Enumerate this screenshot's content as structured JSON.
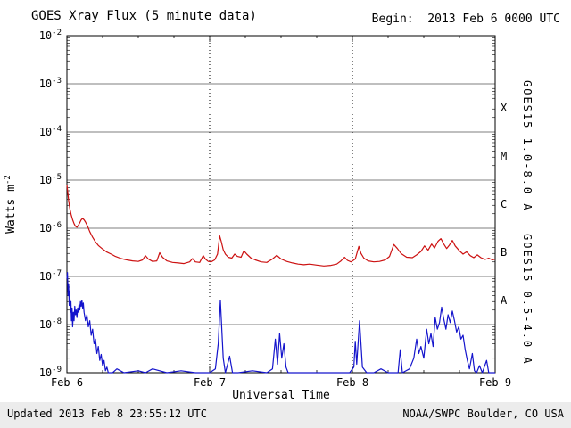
{
  "header": {
    "title": "GOES Xray Flux (5 minute data)",
    "begin_label": "Begin:  2013 Feb 6 0000 UTC"
  },
  "footer": {
    "updated": "Updated 2013 Feb 8 23:55:12 UTC",
    "source": "NOAA/SWPC Boulder, CO USA"
  },
  "axes": {
    "x_title": "Universal Time",
    "y_title_main": "Watts m",
    "y_title_sup": "-2"
  },
  "colors": {
    "long_series": "#cc1111",
    "short_series": "#1414cc",
    "grid": "#000000",
    "footer_bg": "#ececec"
  },
  "chart_data": {
    "type": "line",
    "title": "GOES Xray Flux (5 minute data)",
    "xlabel": "Universal Time",
    "ylabel": "Watts m^-2",
    "x_unit": "day of 2013 Feb (UTC)",
    "x_range": [
      6,
      9
    ],
    "ylim": [
      1e-09,
      0.01
    ],
    "y_tick_exponents": [
      -2,
      -3,
      -4,
      -5,
      -6,
      -7,
      -8,
      -9
    ],
    "x_ticks": [
      {
        "day": 6,
        "label": "Feb 6"
      },
      {
        "day": 7,
        "label": "Feb 7"
      },
      {
        "day": 8,
        "label": "Feb 8"
      },
      {
        "day": 9,
        "label": "Feb 9"
      }
    ],
    "grid": {
      "horizontal_exponents": [
        -3,
        -4,
        -5,
        -6,
        -7,
        -8
      ],
      "vertical_days": [
        7,
        8
      ]
    },
    "flare_classes": [
      {
        "label": "X",
        "log_center": -3.5
      },
      {
        "label": "M",
        "log_center": -4.5
      },
      {
        "label": "C",
        "log_center": -5.5
      },
      {
        "label": "B",
        "log_center": -6.5
      },
      {
        "label": "A",
        "log_center": -7.5
      }
    ],
    "series": [
      {
        "name": "GOES15 1.0-8.0 A",
        "color": "#cc1111",
        "points": [
          [
            6.0,
            8e-06
          ],
          [
            6.006,
            5.5e-06
          ],
          [
            6.012,
            3.8e-06
          ],
          [
            6.02,
            2.6e-06
          ],
          [
            6.03,
            1.9e-06
          ],
          [
            6.04,
            1.5e-06
          ],
          [
            6.05,
            1.25e-06
          ],
          [
            6.06,
            1.1e-06
          ],
          [
            6.07,
            1.05e-06
          ],
          [
            6.08,
            1.15e-06
          ],
          [
            6.09,
            1.3e-06
          ],
          [
            6.1,
            1.5e-06
          ],
          [
            6.11,
            1.6e-06
          ],
          [
            6.12,
            1.5e-06
          ],
          [
            6.13,
            1.35e-06
          ],
          [
            6.145,
            1.1e-06
          ],
          [
            6.16,
            8.5e-07
          ],
          [
            6.18,
            6.5e-07
          ],
          [
            6.2,
            5.2e-07
          ],
          [
            6.22,
            4.4e-07
          ],
          [
            6.25,
            3.7e-07
          ],
          [
            6.28,
            3.2e-07
          ],
          [
            6.31,
            2.9e-07
          ],
          [
            6.34,
            2.6e-07
          ],
          [
            6.38,
            2.35e-07
          ],
          [
            6.42,
            2.2e-07
          ],
          [
            6.46,
            2.1e-07
          ],
          [
            6.5,
            2.05e-07
          ],
          [
            6.53,
            2.2e-07
          ],
          [
            6.55,
            2.7e-07
          ],
          [
            6.57,
            2.3e-07
          ],
          [
            6.6,
            2.05e-07
          ],
          [
            6.63,
            2.1e-07
          ],
          [
            6.65,
            3.1e-07
          ],
          [
            6.67,
            2.5e-07
          ],
          [
            6.7,
            2.1e-07
          ],
          [
            6.74,
            1.95e-07
          ],
          [
            6.78,
            1.9e-07
          ],
          [
            6.82,
            1.85e-07
          ],
          [
            6.86,
            2e-07
          ],
          [
            6.88,
            2.35e-07
          ],
          [
            6.9,
            2e-07
          ],
          [
            6.93,
            1.95e-07
          ],
          [
            6.955,
            2.7e-07
          ],
          [
            6.97,
            2.3e-07
          ],
          [
            6.99,
            2.05e-07
          ],
          [
            7.01,
            2e-07
          ],
          [
            7.035,
            2.2e-07
          ],
          [
            7.055,
            2.9e-07
          ],
          [
            7.07,
            7e-07
          ],
          [
            7.08,
            5.5e-07
          ],
          [
            7.095,
            3.6e-07
          ],
          [
            7.11,
            2.9e-07
          ],
          [
            7.13,
            2.5e-07
          ],
          [
            7.155,
            2.4e-07
          ],
          [
            7.175,
            2.9e-07
          ],
          [
            7.195,
            2.6e-07
          ],
          [
            7.22,
            2.5e-07
          ],
          [
            7.24,
            3.4e-07
          ],
          [
            7.26,
            2.9e-07
          ],
          [
            7.29,
            2.4e-07
          ],
          [
            7.32,
            2.2e-07
          ],
          [
            7.36,
            2e-07
          ],
          [
            7.4,
            1.95e-07
          ],
          [
            7.44,
            2.3e-07
          ],
          [
            7.47,
            2.75e-07
          ],
          [
            7.5,
            2.3e-07
          ],
          [
            7.54,
            2.05e-07
          ],
          [
            7.58,
            1.9e-07
          ],
          [
            7.62,
            1.8e-07
          ],
          [
            7.66,
            1.75e-07
          ],
          [
            7.7,
            1.8e-07
          ],
          [
            7.75,
            1.72e-07
          ],
          [
            7.8,
            1.65e-07
          ],
          [
            7.85,
            1.7e-07
          ],
          [
            7.89,
            1.8e-07
          ],
          [
            7.92,
            2.1e-07
          ],
          [
            7.945,
            2.5e-07
          ],
          [
            7.965,
            2.15e-07
          ],
          [
            7.99,
            2e-07
          ],
          [
            8.02,
            2.3e-07
          ],
          [
            8.045,
            4.2e-07
          ],
          [
            8.06,
            3e-07
          ],
          [
            8.08,
            2.4e-07
          ],
          [
            8.11,
            2.1e-07
          ],
          [
            8.15,
            2e-07
          ],
          [
            8.19,
            2.05e-07
          ],
          [
            8.23,
            2.2e-07
          ],
          [
            8.26,
            2.6e-07
          ],
          [
            8.29,
            4.6e-07
          ],
          [
            8.315,
            3.8e-07
          ],
          [
            8.34,
            3e-07
          ],
          [
            8.38,
            2.5e-07
          ],
          [
            8.42,
            2.45e-07
          ],
          [
            8.45,
            2.8e-07
          ],
          [
            8.48,
            3.3e-07
          ],
          [
            8.505,
            4.3e-07
          ],
          [
            8.53,
            3.5e-07
          ],
          [
            8.555,
            4.7e-07
          ],
          [
            8.575,
            3.9e-07
          ],
          [
            8.6,
            5.4e-07
          ],
          [
            8.62,
            6.1e-07
          ],
          [
            8.64,
            4.7e-07
          ],
          [
            8.66,
            3.8e-07
          ],
          [
            8.68,
            4.5e-07
          ],
          [
            8.7,
            5.6e-07
          ],
          [
            8.72,
            4.3e-07
          ],
          [
            8.75,
            3.4e-07
          ],
          [
            8.775,
            2.9e-07
          ],
          [
            8.8,
            3.25e-07
          ],
          [
            8.825,
            2.7e-07
          ],
          [
            8.85,
            2.45e-07
          ],
          [
            8.875,
            2.8e-07
          ],
          [
            8.9,
            2.45e-07
          ],
          [
            8.93,
            2.25e-07
          ],
          [
            8.955,
            2.4e-07
          ],
          [
            8.98,
            2.2e-07
          ],
          [
            9.0,
            2.3e-07
          ]
        ]
      },
      {
        "name": "GOES15 0.5-4.0 A",
        "color": "#1414cc",
        "points": [
          [
            6.0,
            9e-08
          ],
          [
            6.004,
            1.2e-07
          ],
          [
            6.008,
            4e-08
          ],
          [
            6.012,
            7e-08
          ],
          [
            6.016,
            2.5e-08
          ],
          [
            6.02,
            5e-08
          ],
          [
            6.024,
            1.8e-08
          ],
          [
            6.028,
            3e-08
          ],
          [
            6.032,
            1.2e-08
          ],
          [
            6.036,
            2.2e-08
          ],
          [
            6.04,
            9e-09
          ],
          [
            6.045,
            1.8e-08
          ],
          [
            6.05,
            1.2e-08
          ],
          [
            6.055,
            2.4e-08
          ],
          [
            6.06,
            1.6e-08
          ],
          [
            6.065,
            2e-08
          ],
          [
            6.07,
            1.4e-08
          ],
          [
            6.075,
            2.2e-08
          ],
          [
            6.08,
            1.8e-08
          ],
          [
            6.085,
            2.6e-08
          ],
          [
            6.09,
            2e-08
          ],
          [
            6.095,
            3e-08
          ],
          [
            6.1,
            2.4e-08
          ],
          [
            6.105,
            3.2e-08
          ],
          [
            6.11,
            2.2e-08
          ],
          [
            6.115,
            2.8e-08
          ],
          [
            6.12,
            1.8e-08
          ],
          [
            6.13,
            1.2e-08
          ],
          [
            6.14,
            1.6e-08
          ],
          [
            6.15,
            9e-09
          ],
          [
            6.16,
            1.2e-08
          ],
          [
            6.17,
            6e-09
          ],
          [
            6.18,
            8e-09
          ],
          [
            6.19,
            4e-09
          ],
          [
            6.2,
            5e-09
          ],
          [
            6.21,
            2.5e-09
          ],
          [
            6.22,
            3.5e-09
          ],
          [
            6.23,
            1.8e-09
          ],
          [
            6.24,
            2.4e-09
          ],
          [
            6.25,
            1.4e-09
          ],
          [
            6.26,
            1.8e-09
          ],
          [
            6.27,
            1.1e-09
          ],
          [
            6.28,
            1.3e-09
          ],
          [
            6.29,
            1e-09
          ],
          [
            6.32,
            1e-09
          ],
          [
            6.35,
            1.2e-09
          ],
          [
            6.4,
            1e-09
          ],
          [
            6.5,
            1.1e-09
          ],
          [
            6.55,
            1e-09
          ],
          [
            6.6,
            1.2e-09
          ],
          [
            6.7,
            1e-09
          ],
          [
            6.8,
            1.1e-09
          ],
          [
            6.9,
            1e-09
          ],
          [
            7.0,
            1e-09
          ],
          [
            7.04,
            1.2e-09
          ],
          [
            7.06,
            4e-09
          ],
          [
            7.075,
            3.2e-08
          ],
          [
            7.085,
            8e-09
          ],
          [
            7.095,
            2e-09
          ],
          [
            7.11,
            1e-09
          ],
          [
            7.14,
            2.2e-09
          ],
          [
            7.16,
            1e-09
          ],
          [
            7.2,
            1e-09
          ],
          [
            7.3,
            1.1e-09
          ],
          [
            7.4,
            1e-09
          ],
          [
            7.44,
            1.2e-09
          ],
          [
            7.46,
            5e-09
          ],
          [
            7.475,
            1.5e-09
          ],
          [
            7.49,
            6.5e-09
          ],
          [
            7.505,
            2e-09
          ],
          [
            7.52,
            4e-09
          ],
          [
            7.535,
            1.3e-09
          ],
          [
            7.55,
            1e-09
          ],
          [
            7.6,
            1e-09
          ],
          [
            7.7,
            1e-09
          ],
          [
            7.8,
            1e-09
          ],
          [
            7.9,
            1e-09
          ],
          [
            7.98,
            1e-09
          ],
          [
            8.01,
            1.3e-09
          ],
          [
            8.02,
            4.5e-09
          ],
          [
            8.03,
            1.5e-09
          ],
          [
            8.05,
            1.2e-08
          ],
          [
            8.06,
            4e-09
          ],
          [
            8.07,
            1.3e-09
          ],
          [
            8.1,
            1e-09
          ],
          [
            8.15,
            1e-09
          ],
          [
            8.2,
            1.2e-09
          ],
          [
            8.25,
            1e-09
          ],
          [
            8.32,
            1e-09
          ],
          [
            8.335,
            3e-09
          ],
          [
            8.35,
            1e-09
          ],
          [
            8.4,
            1.2e-09
          ],
          [
            8.43,
            2e-09
          ],
          [
            8.45,
            5e-09
          ],
          [
            8.465,
            2.5e-09
          ],
          [
            8.48,
            3.5e-09
          ],
          [
            8.5,
            2e-09
          ],
          [
            8.52,
            8e-09
          ],
          [
            8.535,
            4e-09
          ],
          [
            8.55,
            6.5e-09
          ],
          [
            8.565,
            3.5e-09
          ],
          [
            8.58,
            1.4e-08
          ],
          [
            8.595,
            8e-09
          ],
          [
            8.61,
            1.1e-08
          ],
          [
            8.625,
            2.3e-08
          ],
          [
            8.64,
            1.3e-08
          ],
          [
            8.655,
            8e-09
          ],
          [
            8.67,
            1.6e-08
          ],
          [
            8.685,
            1.1e-08
          ],
          [
            8.7,
            1.9e-08
          ],
          [
            8.715,
            1.2e-08
          ],
          [
            8.73,
            7e-09
          ],
          [
            8.745,
            9e-09
          ],
          [
            8.76,
            5e-09
          ],
          [
            8.775,
            6e-09
          ],
          [
            8.79,
            3e-09
          ],
          [
            8.805,
            1.8e-09
          ],
          [
            8.82,
            1.2e-09
          ],
          [
            8.84,
            2.5e-09
          ],
          [
            8.855,
            1.1e-09
          ],
          [
            8.87,
            1e-09
          ],
          [
            8.89,
            1.4e-09
          ],
          [
            8.91,
            1e-09
          ],
          [
            8.94,
            1.8e-09
          ],
          [
            8.955,
            1e-09
          ],
          [
            8.98,
            1e-09
          ],
          [
            9.0,
            1e-09
          ]
        ]
      }
    ]
  }
}
